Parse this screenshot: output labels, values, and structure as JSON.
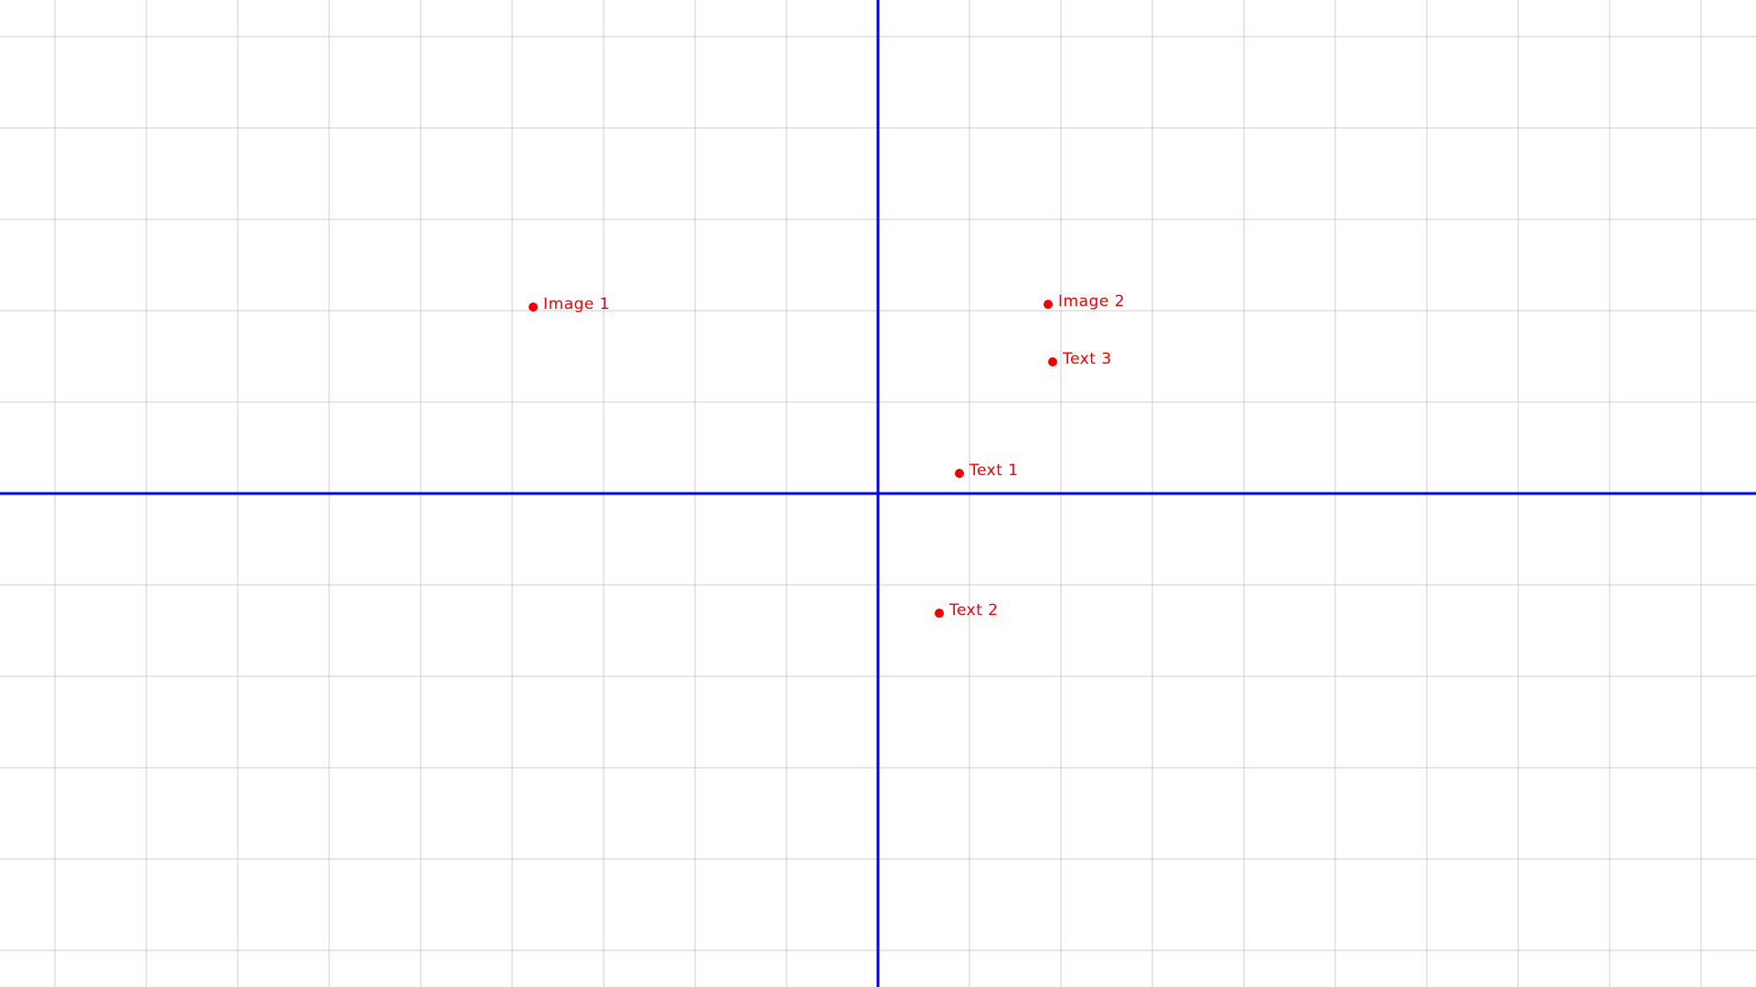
{
  "chart_data": {
    "type": "scatter",
    "title": "",
    "xlabel": "",
    "ylabel": "",
    "grid": true,
    "xlim": [
      -9.6,
      9.6
    ],
    "ylim": [
      -5.4,
      5.4
    ],
    "axes_color": "#0000ee",
    "grid_color": "#cfcfcf",
    "point_color": "#ee0000",
    "points": [
      {
        "label": "Image 1",
        "x": -3.77,
        "y": 2.04
      },
      {
        "label": "Image 2",
        "x": 1.86,
        "y": 2.07
      },
      {
        "label": "Text 3",
        "x": 1.91,
        "y": 1.44
      },
      {
        "label": "Text 1",
        "x": 0.89,
        "y": 0.22
      },
      {
        "label": "Text 2",
        "x": 0.67,
        "y": -1.31
      }
    ]
  }
}
